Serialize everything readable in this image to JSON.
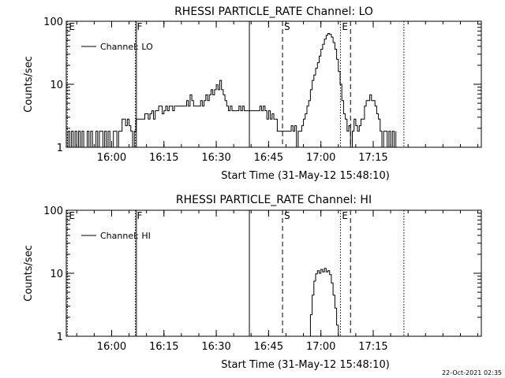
{
  "footer_timestamp": "22-Oct-2021 02:35",
  "chart_data": [
    {
      "type": "line",
      "title": "RHESSI PARTICLE_RATE Channel: LO",
      "xlabel": "Start Time (31-May-12 15:48:10)",
      "ylabel": "Counts/sec",
      "yscale": "log",
      "ylim": [
        1,
        100
      ],
      "xlim_min": [
        -13,
        106
      ],
      "x_ticks": [
        {
          "min": 0,
          "label": "16:00"
        },
        {
          "min": 15,
          "label": "16:15"
        },
        {
          "min": 30,
          "label": "16:30"
        },
        {
          "min": 45,
          "label": "16:45"
        },
        {
          "min": 60,
          "label": "17:00"
        },
        {
          "min": 75,
          "label": "17:15"
        }
      ],
      "y_ticks": [
        {
          "v": 1,
          "label": "1"
        },
        {
          "v": 10,
          "label": "10"
        },
        {
          "v": 100,
          "label": "100"
        }
      ],
      "legend": {
        "position": "top-left",
        "label": "Channel: LO"
      },
      "markers": [
        {
          "min": -12.7,
          "label": "E",
          "style": "dotted"
        },
        {
          "min": 6.8,
          "label": "F",
          "style": "dotted"
        },
        {
          "min": 7.1,
          "label": "",
          "style": "solid"
        },
        {
          "min": 39.5,
          "label": "",
          "style": "solid"
        },
        {
          "min": 49,
          "label": "S",
          "style": "dashed"
        },
        {
          "min": 65.6,
          "label": "E",
          "style": "dotted"
        },
        {
          "min": 68.5,
          "label": "",
          "style": "dashed"
        },
        {
          "min": 83.8,
          "label": "",
          "style": "dotted"
        }
      ],
      "series": [
        {
          "values": [
            [
              -13,
              1
            ],
            [
              -12.5,
              1.8
            ],
            [
              -12,
              1
            ],
            [
              -11.5,
              1.8
            ],
            [
              -11,
              1
            ],
            [
              -10.5,
              1.8
            ],
            [
              -10,
              1
            ],
            [
              -9.5,
              1.8
            ],
            [
              -9,
              1
            ],
            [
              -8.5,
              1.8
            ],
            [
              -8,
              1
            ],
            [
              -7.5,
              1
            ],
            [
              -7,
              1.8
            ],
            [
              -6.5,
              1
            ],
            [
              -6,
              1.8
            ],
            [
              -5.5,
              1
            ],
            [
              -5,
              1
            ],
            [
              -4.5,
              1.8
            ],
            [
              -4,
              1
            ],
            [
              -3.5,
              1.8
            ],
            [
              -3,
              1.8
            ],
            [
              -2.5,
              1
            ],
            [
              -2,
              1.8
            ],
            [
              -1.5,
              1
            ],
            [
              -1,
              1.8
            ],
            [
              -0.5,
              1
            ],
            [
              0,
              1
            ],
            [
              0.5,
              1.8
            ],
            [
              1,
              1.8
            ],
            [
              1.5,
              1
            ],
            [
              2,
              1.8
            ],
            [
              2.5,
              1.8
            ],
            [
              3,
              2.8
            ],
            [
              3.5,
              2.8
            ],
            [
              4,
              2.2
            ],
            [
              4.5,
              2.8
            ],
            [
              5,
              2.2
            ],
            [
              5.5,
              1.8
            ],
            [
              6,
              1
            ],
            [
              6.5,
              1.8
            ],
            [
              7,
              2.8
            ],
            [
              8,
              2.8
            ],
            [
              9,
              2.8
            ],
            [
              9.5,
              3.4
            ],
            [
              10,
              3.4
            ],
            [
              10.5,
              2.8
            ],
            [
              11,
              3.4
            ],
            [
              11.5,
              3.8
            ],
            [
              12,
              2.8
            ],
            [
              12.5,
              3.8
            ],
            [
              13,
              3.8
            ],
            [
              13.5,
              4.5
            ],
            [
              14,
              4.5
            ],
            [
              14.5,
              3.4
            ],
            [
              15,
              3.8
            ],
            [
              15.5,
              4.5
            ],
            [
              16,
              3.8
            ],
            [
              16.5,
              4.5
            ],
            [
              17,
              4.5
            ],
            [
              17.5,
              3.8
            ],
            [
              18,
              4.5
            ],
            [
              19,
              4.5
            ],
            [
              20,
              4.5
            ],
            [
              21,
              4.5
            ],
            [
              21.5,
              5.5
            ],
            [
              22,
              4.5
            ],
            [
              22.5,
              6.8
            ],
            [
              23,
              5.5
            ],
            [
              23.5,
              4.5
            ],
            [
              24,
              4.5
            ],
            [
              25,
              4.5
            ],
            [
              25.5,
              5.5
            ],
            [
              26,
              4.5
            ],
            [
              26.5,
              5.5
            ],
            [
              27,
              6.8
            ],
            [
              27.5,
              5.5
            ],
            [
              28,
              6.8
            ],
            [
              28.5,
              8.2
            ],
            [
              29,
              6.8
            ],
            [
              29.5,
              8.2
            ],
            [
              30,
              9.8
            ],
            [
              30.5,
              8.2
            ],
            [
              31,
              11.5
            ],
            [
              31.5,
              8.2
            ],
            [
              32,
              6.8
            ],
            [
              32.5,
              5.5
            ],
            [
              33,
              4.5
            ],
            [
              33.5,
              3.8
            ],
            [
              34,
              4.5
            ],
            [
              34.5,
              3.8
            ],
            [
              35,
              3.8
            ],
            [
              36,
              3.8
            ],
            [
              36.5,
              4.5
            ],
            [
              37,
              3.8
            ],
            [
              37.5,
              4.5
            ],
            [
              38,
              3.8
            ],
            [
              39,
              3.8
            ],
            [
              40,
              3.8
            ],
            [
              41,
              3.8
            ],
            [
              42,
              3.8
            ],
            [
              42.5,
              4.5
            ],
            [
              43,
              3.8
            ],
            [
              43.5,
              4.5
            ],
            [
              44,
              3.8
            ],
            [
              44.5,
              2.8
            ],
            [
              45,
              3.8
            ],
            [
              45.5,
              2.8
            ],
            [
              46,
              3.4
            ],
            [
              46.5,
              2.8
            ],
            [
              47,
              2.8
            ],
            [
              47.5,
              1.8
            ],
            [
              48,
              1.8
            ],
            [
              49,
              1.8
            ],
            [
              50,
              1.8
            ],
            [
              51,
              1.8
            ],
            [
              51.5,
              2.2
            ],
            [
              52,
              1.8
            ],
            [
              52.5,
              2.2
            ],
            [
              53,
              1
            ],
            [
              53.5,
              1.8
            ],
            [
              54,
              1.8
            ],
            [
              54.5,
              2.2
            ],
            [
              55,
              2.8
            ],
            [
              55.5,
              3.4
            ],
            [
              56,
              4.5
            ],
            [
              56.5,
              5.5
            ],
            [
              57,
              8.2
            ],
            [
              57.5,
              11.5
            ],
            [
              58,
              14
            ],
            [
              58.5,
              18
            ],
            [
              59,
              22
            ],
            [
              59.5,
              28
            ],
            [
              60,
              36
            ],
            [
              60.5,
              43
            ],
            [
              61,
              52
            ],
            [
              61.5,
              60
            ],
            [
              62,
              64
            ],
            [
              62.5,
              62
            ],
            [
              63,
              56
            ],
            [
              63.5,
              46
            ],
            [
              64,
              36
            ],
            [
              64.5,
              25
            ],
            [
              65,
              16
            ],
            [
              65.5,
              10
            ],
            [
              66,
              5.5
            ],
            [
              66.5,
              3.4
            ],
            [
              67,
              2.8
            ],
            [
              67.5,
              1.8
            ],
            [
              68,
              2.2
            ],
            [
              68.5,
              1
            ],
            [
              69,
              1.8
            ],
            [
              69.5,
              2.8
            ],
            [
              70,
              2.2
            ],
            [
              70.5,
              1.8
            ],
            [
              71,
              2.2
            ],
            [
              71.5,
              2.8
            ],
            [
              72,
              2.8
            ],
            [
              72.5,
              4.5
            ],
            [
              73,
              5.5
            ],
            [
              73.5,
              5.5
            ],
            [
              74,
              6.8
            ],
            [
              74.5,
              5.5
            ],
            [
              75,
              5.5
            ],
            [
              75.5,
              4.5
            ],
            [
              76,
              3.4
            ],
            [
              76.5,
              2.8
            ],
            [
              77,
              1.8
            ],
            [
              77.5,
              1
            ],
            [
              78,
              1.8
            ],
            [
              78.5,
              1.8
            ],
            [
              79,
              1
            ],
            [
              79.5,
              1.8
            ],
            [
              80,
              1
            ],
            [
              80.5,
              1.8
            ],
            [
              81,
              1
            ],
            [
              81.5,
              1.8
            ]
          ]
        }
      ]
    },
    {
      "type": "line",
      "title": "RHESSI PARTICLE_RATE Channel: HI",
      "xlabel": "Start Time (31-May-12 15:48:10)",
      "ylabel": "Counts/sec",
      "yscale": "log",
      "ylim": [
        1,
        100
      ],
      "xlim_min": [
        -13,
        106
      ],
      "x_ticks": [
        {
          "min": 0,
          "label": "16:00"
        },
        {
          "min": 15,
          "label": "16:15"
        },
        {
          "min": 30,
          "label": "16:30"
        },
        {
          "min": 45,
          "label": "16:45"
        },
        {
          "min": 60,
          "label": "17:00"
        },
        {
          "min": 75,
          "label": "17:15"
        }
      ],
      "y_ticks": [
        {
          "v": 1,
          "label": "1"
        },
        {
          "v": 10,
          "label": "10"
        },
        {
          "v": 100,
          "label": "100"
        }
      ],
      "legend": {
        "position": "top-left",
        "label": "Channel: HI"
      },
      "markers": [
        {
          "min": -12.7,
          "label": "E",
          "style": "dotted"
        },
        {
          "min": 6.8,
          "label": "F",
          "style": "dotted"
        },
        {
          "min": 7.1,
          "label": "",
          "style": "solid"
        },
        {
          "min": 39.5,
          "label": "",
          "style": "solid"
        },
        {
          "min": 49,
          "label": "S",
          "style": "dashed"
        },
        {
          "min": 65.6,
          "label": "E",
          "style": "dotted"
        },
        {
          "min": 68.5,
          "label": "",
          "style": "dashed"
        },
        {
          "min": 83.8,
          "label": "",
          "style": "dotted"
        }
      ],
      "series": [
        {
          "values": [
            [
              56.5,
              1
            ],
            [
              57,
              2.2
            ],
            [
              57.5,
              4.5
            ],
            [
              58,
              7.5
            ],
            [
              58.5,
              9.8
            ],
            [
              59,
              11
            ],
            [
              59.5,
              10
            ],
            [
              60,
              11.5
            ],
            [
              60.5,
              10.5
            ],
            [
              61,
              12
            ],
            [
              61.5,
              10.5
            ],
            [
              62,
              11
            ],
            [
              62.5,
              9.5
            ],
            [
              63,
              7
            ],
            [
              63.5,
              4.5
            ],
            [
              64,
              2.8
            ],
            [
              64.5,
              1.5
            ],
            [
              65,
              1
            ]
          ]
        }
      ]
    }
  ]
}
